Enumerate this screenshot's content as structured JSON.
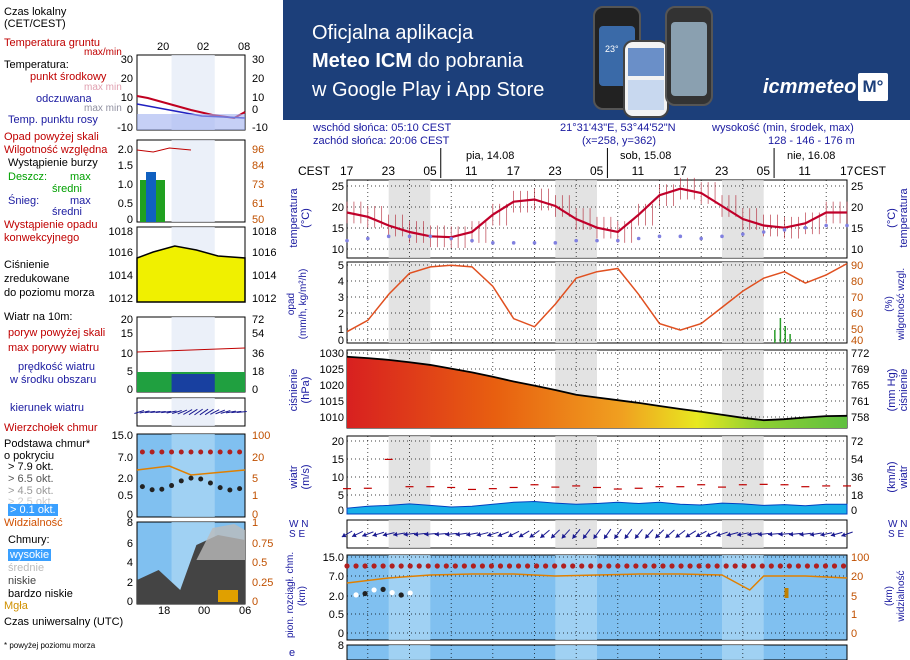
{
  "banner": {
    "line1": "Oficjalna aplikacja",
    "line2_bold": "Meteo ICM",
    "line2_rest": " do pobrania",
    "line3": "w Google Play i App Store",
    "logo": "icmmeteo",
    "logo_box": "M°",
    "phone_temp": "23°"
  },
  "header": {
    "sunrise": "wschód słońca: 05:10 CEST",
    "sunset": "zachód słońca: 20:06 CEST",
    "coords": "21°31'43\"E, 53°44'52\"N",
    "grid": "(x=258,  y=362)",
    "elev_label": "wysokość (min, środek, max)",
    "elev_values": "128 - 146 - 176 m"
  },
  "legend": {
    "time_label": "Czas lokalny\n(CET/CEST)",
    "time_ticks": [
      "20",
      "02",
      "08"
    ],
    "temp": {
      "ground": "Temperatura gruntu",
      "ground_sub": "max/min",
      "title": "Temperatura:",
      "mid": "punkt środkowy",
      "mid_sub": "max min",
      "feels": "odczuwana",
      "feels_sub": "max min",
      "dew": "Temp. punktu rosy",
      "ticks_left": [
        "30",
        "20",
        "10",
        "0",
        "-10"
      ],
      "ticks_right": [
        "30",
        "20",
        "10",
        "0",
        "-10"
      ]
    },
    "precip": {
      "above": "Opad powyżej skali",
      "humidity": "Wilgotność względna",
      "storm": "Wystąpienie burzy",
      "rain": "Deszcz:",
      "rain_max": "max",
      "rain_avg": "średni",
      "snow": "Śnieg:",
      "snow_max": "max",
      "snow_avg": "średni",
      "occ": "Wystąpienie opadu",
      "occ2": "konwekcyjnego",
      "ticks_left": [
        "2.0",
        "1.5",
        "1.0",
        "0.5",
        "0"
      ],
      "ticks_right": [
        "96",
        "84",
        "73",
        "61",
        "50"
      ]
    },
    "pressure": {
      "label": "Ciśnienie\nzredukowane\ndo poziomu morza",
      "ticks_left": [
        "1018",
        "1016",
        "1014",
        "1012"
      ],
      "ticks_right": [
        "1018",
        "1016",
        "1014",
        "1012"
      ]
    },
    "wind": {
      "title": "Wiatr na 10m:",
      "gust_above": "poryw powyżej skali",
      "gust_max": "max porywy wiatru",
      "speed": "prędkość wiatru",
      "speed_sub": "w środku obszaru",
      "ticks_left": [
        "20",
        "15",
        "10",
        "5",
        "0"
      ],
      "ticks_right": [
        "72",
        "54",
        "36",
        "18",
        "0"
      ]
    },
    "wind_dir": "kierunek wiatru",
    "cloud_base": {
      "top": "Wierzchołek chmur",
      "base": "Podstawa chmur*\no pokryciu",
      "l1": "> 7.9 okt.",
      "l2": "> 6.5 okt.",
      "l3": "> 4.5 okt.",
      "l4": "> 2.5 okt.",
      "l5": "> 0.1 okt.",
      "vis": "Widzialność",
      "ticks_left": [
        "15.0",
        "7.0",
        "2.0",
        "0.5",
        "0"
      ],
      "ticks_right": [
        "100",
        "20",
        "5",
        "1",
        "0"
      ]
    },
    "clouds": {
      "title": "Chmury:",
      "high": "wysokie",
      "mid": "średnie",
      "low": "niskie",
      "vlow": "bardzo niskie",
      "fog": "Mgła",
      "ticks_left": [
        "8",
        "6",
        "4",
        "2",
        "0"
      ],
      "ticks_right": [
        "1",
        "0.75",
        "0.5",
        "0.25",
        "0"
      ]
    },
    "utc_ticks": [
      "18",
      "00",
      "06"
    ],
    "utc_label": "Czas uniwersalny (UTC)",
    "footnote": "* powyżej poziomu morza"
  },
  "main": {
    "cest": "CEST",
    "hours": [
      "17",
      "23",
      "05",
      "11",
      "17",
      "23",
      "05",
      "11",
      "17",
      "23",
      "05",
      "11",
      "17"
    ],
    "days": [
      "pia, 14.08",
      "sob, 15.08",
      "nie, 16.08"
    ],
    "panels": [
      {
        "left": "temperatura\n(°C)",
        "right": "(°C)\ntemperatura",
        "ticks_left": [
          "25",
          "20",
          "15",
          "10"
        ],
        "ticks_right": [
          "25",
          "20",
          "15",
          "10"
        ]
      },
      {
        "left": "opad\n(mm/h, kg/m²/h)",
        "right": "(%)\nwilgotność wzgl.",
        "ticks_left": [
          "5",
          "4",
          "3",
          "2",
          "1",
          "0"
        ],
        "ticks_right": [
          "90",
          "80",
          "70",
          "60",
          "50",
          "40"
        ]
      },
      {
        "left": "ciśnienie\n(hPa)",
        "right": "(mm Hg)\nciśnienie",
        "ticks_left": [
          "1030",
          "1025",
          "1020",
          "1015",
          "1010"
        ],
        "ticks_right": [
          "772",
          "769",
          "765",
          "761",
          "758"
        ]
      },
      {
        "left": "wiatr\n(m/s)",
        "right": "(km/h)\nwiatr",
        "ticks_left": [
          "20",
          "15",
          "10",
          "5",
          "0"
        ],
        "ticks_right": [
          "72",
          "54",
          "36",
          "18",
          "0"
        ]
      },
      {
        "left": "W N\nS E",
        "right": "W N\nS E"
      },
      {
        "left": "pion. rozciągł. chm.\n(km)",
        "right": "(km)\nwidzialność",
        "ticks_left": [
          "15.0",
          "7.0",
          "2.0",
          "0.5",
          "0"
        ],
        "ticks_right": [
          "100",
          "20",
          "5",
          "1",
          "0"
        ]
      },
      {
        "left": "e",
        "right": "",
        "ticks_left": [
          "8"
        ]
      }
    ]
  },
  "chart_data": [
    {
      "type": "line",
      "title": "temperatura",
      "ylabel": "temperatura (°C)",
      "ylim": [
        9,
        27
      ],
      "x": [
        0,
        3,
        6,
        9,
        12,
        15,
        18,
        21,
        24,
        27,
        30,
        33,
        36,
        39,
        42,
        45,
        48,
        51,
        54,
        57,
        60,
        63,
        66,
        69,
        72
      ],
      "series": [
        {
          "name": "punkt środkowy",
          "color": "#c0002a",
          "values": [
            19.5,
            18.5,
            16.5,
            15,
            14,
            13.8,
            15,
            19,
            22,
            22.5,
            21,
            18,
            16,
            15,
            19,
            23.5,
            25,
            24,
            21,
            18,
            16.5,
            16,
            17,
            19.5,
            19.5
          ]
        },
        {
          "name": "Temp. punktu rosy",
          "color": "#8080e0",
          "values": [
            13,
            13.5,
            14,
            14,
            14,
            13.5,
            13,
            12.5,
            12.5,
            12.5,
            12.5,
            13,
            13,
            13,
            13.5,
            14,
            14,
            13.5,
            14,
            14.5,
            15,
            15.5,
            16,
            16.5,
            16.5
          ]
        }
      ]
    },
    {
      "type": "line",
      "title": "opad",
      "ylabel": "wilgotność wzgl. (%)",
      "ylim": [
        40,
        90
      ],
      "x": [
        0,
        3,
        6,
        9,
        12,
        15,
        18,
        21,
        24,
        27,
        30,
        33,
        36,
        39,
        42,
        45,
        48,
        51,
        54,
        57,
        60,
        63,
        66,
        69,
        72
      ],
      "series": [
        {
          "name": "Wilgotność względna",
          "color": "#e05020",
          "values": [
            47,
            54,
            70,
            83,
            87,
            88,
            87,
            75,
            55,
            50,
            64,
            80,
            84,
            86,
            70,
            52,
            48,
            52,
            62,
            72,
            80,
            84,
            77,
            82,
            89
          ]
        }
      ]
    },
    {
      "type": "area",
      "title": "ciśnienie",
      "ylabel": "ciśnienie (hPa)",
      "ylim": [
        1008,
        1031
      ],
      "x": [
        0,
        3,
        6,
        9,
        12,
        15,
        18,
        21,
        24,
        27,
        30,
        33,
        36,
        39,
        42,
        45,
        48,
        51,
        54,
        57,
        60,
        63,
        66,
        69,
        72
      ],
      "series": [
        {
          "name": "ciśnienie",
          "color": "#000000",
          "values": [
            1029,
            1028.6,
            1028.1,
            1027.4,
            1026.6,
            1025.5,
            1024.4,
            1023.1,
            1021.7,
            1020.5,
            1019.2,
            1017.8,
            1017,
            1016.2,
            1015.4,
            1014.5,
            1013.6,
            1012.8,
            1011.9,
            1011,
            1010.3,
            1010.6,
            1011.1,
            1011.5,
            1011.6
          ]
        }
      ]
    },
    {
      "type": "line",
      "title": "wiatr",
      "ylabel": "wiatr (m/s)",
      "ylim": [
        0,
        20
      ],
      "x": [
        0,
        3,
        6,
        9,
        12,
        15,
        18,
        21,
        24,
        27,
        30,
        33,
        36,
        39,
        42,
        45,
        48,
        51,
        54,
        57,
        60,
        63,
        66,
        69,
        72
      ],
      "series": [
        {
          "name": "max porywy wiatru",
          "color": "#c00000",
          "values": [
            6.5,
            6.6,
            14,
            7,
            7,
            6.8,
            6.3,
            6.5,
            6.8,
            7.5,
            6.9,
            7.2,
            6.8,
            6.4,
            6.6,
            7,
            7,
            7.5,
            6.9,
            7.5,
            7.6,
            7.5,
            7,
            7.2,
            7.2
          ]
        },
        {
          "name": "prędkość wiatru",
          "color": "#0050d0",
          "values": [
            1.5,
            2,
            2.2,
            2.6,
            2.2,
            1.8,
            2,
            2.5,
            3,
            3.2,
            2.8,
            2.5,
            2.7,
            3,
            2.7,
            3,
            2.5,
            2.3,
            2.8,
            2.6,
            2.2,
            2.4,
            2.1,
            2.5,
            2.5
          ]
        }
      ]
    }
  ]
}
